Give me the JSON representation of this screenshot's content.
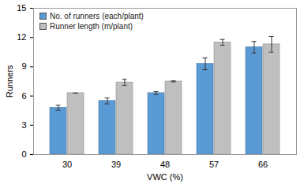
{
  "chart_data": {
    "type": "bar",
    "x_label": "VWC (%)",
    "y_label": "Runners",
    "categories": [
      "30",
      "39",
      "48",
      "57",
      "66"
    ],
    "series": [
      {
        "name": "No. of runners (each/plant)",
        "color": "#5b9bd5",
        "values": [
          4.8,
          5.5,
          6.3,
          9.3,
          11.0
        ],
        "errors": [
          0.25,
          0.3,
          0.15,
          0.6,
          0.6
        ]
      },
      {
        "name": "Runner length (m/plant)",
        "color": "#bfbfbf",
        "values": [
          6.3,
          7.4,
          7.5,
          11.5,
          11.3
        ],
        "errors": [
          0,
          0.3,
          0.05,
          0.3,
          0.8
        ]
      }
    ],
    "ylim": [
      0,
      15
    ],
    "yticks": [
      0,
      3,
      6,
      9,
      12,
      15
    ],
    "grid": false,
    "legend": "top-left"
  }
}
